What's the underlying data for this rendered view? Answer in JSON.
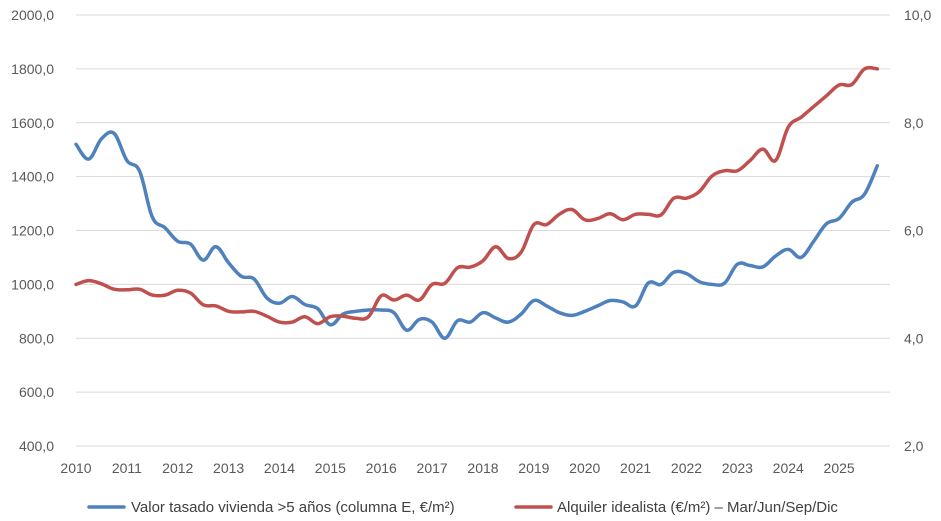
{
  "chart_data": {
    "type": "line",
    "title": "",
    "grid": true,
    "legend_position": "bottom",
    "x_axis": {
      "min": 2010,
      "max": 2026,
      "ticks": [
        "2010",
        "2011",
        "2012",
        "2013",
        "2014",
        "2015",
        "2016",
        "2017",
        "2018",
        "2019",
        "2020",
        "2021",
        "2022",
        "2023",
        "2024",
        "2025"
      ]
    },
    "y_left": {
      "min": 400,
      "max": 2000,
      "ticks": [
        "400,0",
        "600,0",
        "800,0",
        "1000,0",
        "1200,0",
        "1400,0",
        "1600,0",
        "1800,0",
        "2000,0"
      ]
    },
    "y_right": {
      "min": 2,
      "max": 10,
      "ticks": [
        "2,0",
        "4,0",
        "6,0",
        "8,0",
        "10,0"
      ]
    },
    "series": [
      {
        "name": "Valor tasado vivienda >5 años (columna E, €/m²)",
        "axis": "left",
        "color": "#4f81bd",
        "x": [
          2010.0,
          2010.25,
          2010.5,
          2010.75,
          2011.0,
          2011.25,
          2011.5,
          2011.75,
          2012.0,
          2012.25,
          2012.5,
          2012.75,
          2013.0,
          2013.25,
          2013.5,
          2013.75,
          2014.0,
          2014.25,
          2014.5,
          2014.75,
          2015.0,
          2015.25,
          2015.5,
          2015.75,
          2016.0,
          2016.25,
          2016.5,
          2016.75,
          2017.0,
          2017.25,
          2017.5,
          2017.75,
          2018.0,
          2018.25,
          2018.5,
          2018.75,
          2019.0,
          2019.25,
          2019.5,
          2019.75,
          2020.0,
          2020.25,
          2020.5,
          2020.75,
          2021.0,
          2021.25,
          2021.5,
          2021.75,
          2022.0,
          2022.25,
          2022.5,
          2022.75,
          2023.0,
          2023.25,
          2023.5,
          2023.75,
          2024.0,
          2024.25,
          2024.5,
          2024.75,
          2025.0,
          2025.25,
          2025.5,
          2025.75
        ],
        "values": [
          1520,
          1465,
          1540,
          1560,
          1460,
          1420,
          1250,
          1210,
          1160,
          1150,
          1090,
          1140,
          1080,
          1030,
          1020,
          950,
          930,
          955,
          925,
          910,
          850,
          890,
          900,
          905,
          905,
          895,
          830,
          870,
          860,
          800,
          865,
          860,
          895,
          875,
          860,
          890,
          940,
          920,
          895,
          885,
          900,
          920,
          940,
          935,
          920,
          1005,
          1000,
          1045,
          1040,
          1010,
          1000,
          1005,
          1075,
          1070,
          1065,
          1105,
          1130,
          1100,
          1160,
          1225,
          1245,
          1305,
          1335,
          1440
        ]
      },
      {
        "name": "Alquiler idealista (€/m²) – Mar/Jun/Sep/Dic",
        "axis": "right",
        "color": "#c0504d",
        "x": [
          2010.0,
          2010.25,
          2010.5,
          2010.75,
          2011.0,
          2011.25,
          2011.5,
          2011.75,
          2012.0,
          2012.25,
          2012.5,
          2012.75,
          2013.0,
          2013.25,
          2013.5,
          2013.75,
          2014.0,
          2014.25,
          2014.5,
          2014.75,
          2015.0,
          2015.25,
          2015.5,
          2015.75,
          2016.0,
          2016.25,
          2016.5,
          2016.75,
          2017.0,
          2017.25,
          2017.5,
          2017.75,
          2018.0,
          2018.25,
          2018.5,
          2018.75,
          2019.0,
          2019.25,
          2019.5,
          2019.75,
          2020.0,
          2020.25,
          2020.5,
          2020.75,
          2021.0,
          2021.25,
          2021.5,
          2021.75,
          2022.0,
          2022.25,
          2022.5,
          2022.75,
          2023.0,
          2023.25,
          2023.5,
          2023.75,
          2024.0,
          2024.25,
          2024.5,
          2024.75,
          2025.0,
          2025.25,
          2025.5,
          2025.75
        ],
        "values": [
          5.0,
          5.07,
          5.01,
          4.91,
          4.9,
          4.91,
          4.8,
          4.8,
          4.89,
          4.84,
          4.62,
          4.6,
          4.5,
          4.49,
          4.5,
          4.41,
          4.3,
          4.3,
          4.4,
          4.27,
          4.4,
          4.41,
          4.37,
          4.4,
          4.79,
          4.71,
          4.8,
          4.71,
          5.0,
          5.02,
          5.31,
          5.32,
          5.44,
          5.7,
          5.48,
          5.6,
          6.11,
          6.11,
          6.3,
          6.39,
          6.2,
          6.22,
          6.31,
          6.2,
          6.3,
          6.3,
          6.29,
          6.6,
          6.6,
          6.72,
          7.01,
          7.11,
          7.11,
          7.3,
          7.51,
          7.3,
          7.92,
          8.1,
          8.3,
          8.5,
          8.7,
          8.71,
          9.0,
          9.0
        ]
      }
    ]
  }
}
